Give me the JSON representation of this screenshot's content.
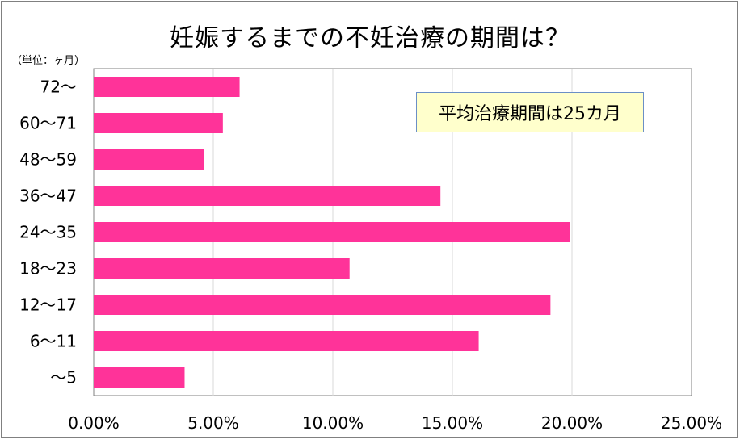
{
  "chart_data": {
    "type": "bar",
    "orientation": "horizontal",
    "title": "妊娠するまでの不妊治療の期間は？",
    "unit_label": "（単位：ヶ月）",
    "annotation": "平均治療期間は25カ月",
    "categories": [
      "72～",
      "60～71",
      "48～59",
      "36～47",
      "24～35",
      "18～23",
      "12～17",
      "6～11",
      "～5"
    ],
    "values": [
      6.1,
      5.4,
      4.6,
      14.5,
      19.9,
      10.7,
      19.1,
      16.1,
      3.8
    ],
    "xlim": [
      0,
      25
    ],
    "x_ticks": [
      "0.00%",
      "5.00%",
      "10.00%",
      "15.00%",
      "20.00%",
      "25.00%"
    ],
    "bar_color": "#ff3399",
    "grid": true
  }
}
